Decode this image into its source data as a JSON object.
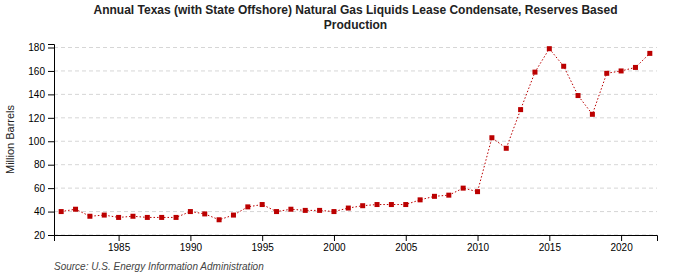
{
  "chart_data": {
    "type": "line",
    "title": "Annual Texas (with State Offshore) Natural Gas Liquids Lease Condensate, Reserves Based\nProduction",
    "ylabel": "Million Barrels",
    "source": "Source: U.S. Energy Information Administration",
    "x": [
      1981,
      1982,
      1983,
      1984,
      1985,
      1986,
      1987,
      1988,
      1989,
      1990,
      1991,
      1992,
      1993,
      1994,
      1995,
      1996,
      1997,
      1998,
      1999,
      2000,
      2001,
      2002,
      2003,
      2004,
      2005,
      2006,
      2007,
      2008,
      2009,
      2010,
      2011,
      2012,
      2013,
      2014,
      2015,
      2016,
      2017,
      2018,
      2019,
      2020,
      2021,
      2022
    ],
    "values": [
      40,
      42,
      36,
      37,
      35,
      36,
      35,
      35,
      35,
      40,
      38,
      33,
      37,
      44,
      46,
      40,
      42,
      41,
      41,
      40,
      43,
      45,
      46,
      46,
      46,
      50,
      53,
      54,
      60,
      57,
      103,
      94,
      127,
      159,
      179,
      164,
      139,
      123,
      158,
      160,
      163,
      175
    ],
    "color": "#bb0000",
    "marker": "square",
    "line_style": "dotted",
    "xlim": [
      1980.5,
      2022.5
    ],
    "ylim": [
      20,
      183
    ],
    "xticks": [
      1985,
      1990,
      1995,
      2000,
      2005,
      2010,
      2015,
      2020
    ],
    "yticks": [
      20,
      40,
      60,
      80,
      100,
      120,
      140,
      160,
      180
    ],
    "grid": true
  }
}
